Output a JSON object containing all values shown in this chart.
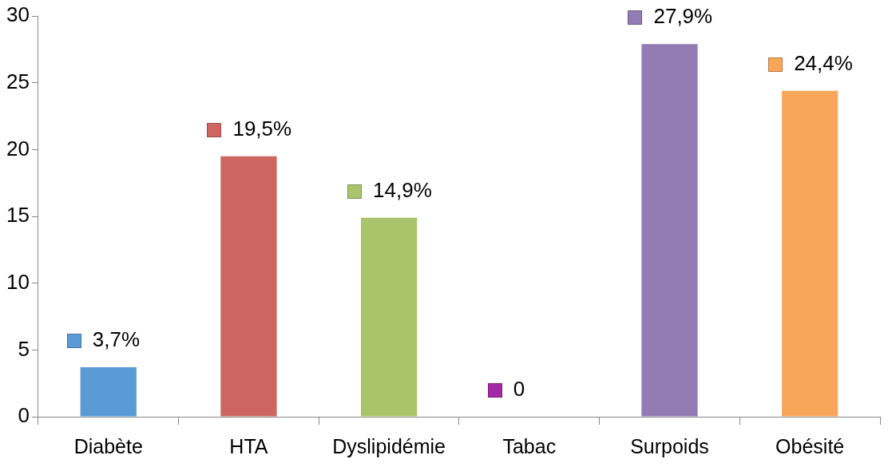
{
  "chart_data": {
    "type": "bar",
    "categories": [
      "Diabète",
      "HTA",
      "Dyslipidémie",
      "Tabac",
      "Surpoids",
      "Obésité"
    ],
    "values": [
      3.7,
      19.5,
      14.9,
      0,
      27.9,
      24.4
    ],
    "colors": [
      "#5b9bd5",
      "#cd6660",
      "#a9c46a",
      "#a22aa6",
      "#937bb4",
      "#f8a65a"
    ],
    "value_labels": [
      "3,7%",
      "19,5%",
      "14,9%",
      "0",
      "27,9%",
      "24,4%"
    ],
    "ylim": [
      0,
      30
    ],
    "yticks": [
      0,
      5,
      10,
      15,
      20,
      25,
      30
    ],
    "grid": false,
    "legend": false
  }
}
